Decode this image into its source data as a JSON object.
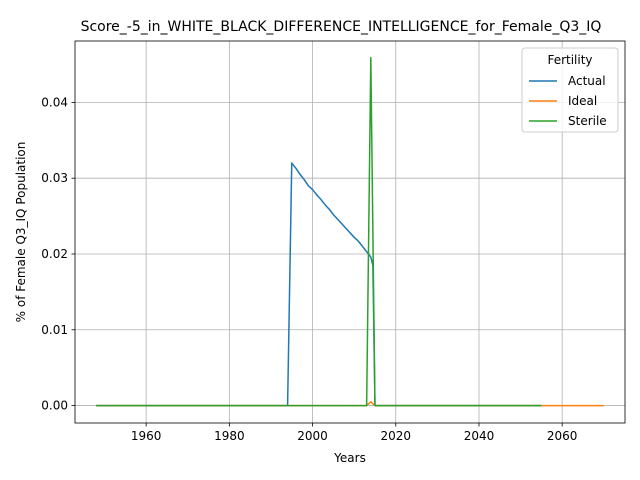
{
  "chart_data": {
    "type": "line",
    "title": "Score_-5_in_WHITE_BLACK_DIFFERENCE_INTELLIGENCE_for_Female_Q3_IQ",
    "xlabel": "Years",
    "ylabel": "% of Female Q3_IQ Population",
    "xlim": [
      1942.9,
      2075.1
    ],
    "ylim": [
      -0.0023,
      0.0481
    ],
    "xticks": [
      1960,
      1980,
      2000,
      2020,
      2040,
      2060
    ],
    "yticks": [
      0.0,
      0.01,
      0.02,
      0.03,
      0.04
    ],
    "xtick_labels": [
      "1960",
      "1980",
      "2000",
      "2020",
      "2040",
      "2060"
    ],
    "ytick_labels": [
      "0.00",
      "0.01",
      "0.02",
      "0.03",
      "0.04"
    ],
    "grid": true,
    "legend": {
      "title": "Fertility",
      "position": "top-right"
    },
    "series": [
      {
        "name": "Actual",
        "color": "#1f77b4",
        "points": [
          [
            1948,
            0
          ],
          [
            1994,
            0
          ],
          [
            1995,
            0.032
          ],
          [
            1996,
            0.0313
          ],
          [
            1997,
            0.0305
          ],
          [
            1998,
            0.0298
          ],
          [
            1999,
            0.029
          ],
          [
            2000,
            0.0285
          ],
          [
            2001,
            0.0278
          ],
          [
            2002,
            0.0272
          ],
          [
            2003,
            0.0265
          ],
          [
            2004,
            0.0259
          ],
          [
            2005,
            0.0252
          ],
          [
            2006,
            0.0246
          ],
          [
            2007,
            0.024
          ],
          [
            2008,
            0.0234
          ],
          [
            2009,
            0.0228
          ],
          [
            2010,
            0.0222
          ],
          [
            2011,
            0.0217
          ],
          [
            2012,
            0.021
          ],
          [
            2013,
            0.0203
          ],
          [
            2014,
            0.0196
          ],
          [
            2014.5,
            0.0185
          ],
          [
            2015,
            0
          ],
          [
            2055,
            0
          ]
        ]
      },
      {
        "name": "Ideal",
        "color": "#ff7f0e",
        "points": [
          [
            1948,
            0
          ],
          [
            2013,
            0
          ],
          [
            2014,
            0.0005
          ],
          [
            2015,
            0
          ],
          [
            2070,
            0
          ]
        ]
      },
      {
        "name": "Sterile",
        "color": "#2ca02c",
        "points": [
          [
            1948,
            0
          ],
          [
            2013,
            0
          ],
          [
            2014,
            0.0459
          ],
          [
            2015,
            0
          ],
          [
            2055,
            0
          ]
        ]
      }
    ]
  }
}
